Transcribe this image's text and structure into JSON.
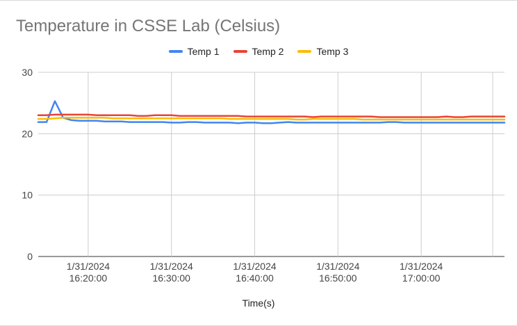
{
  "chart_data": {
    "type": "line",
    "title": "Temperature in CSSE Lab (Celsius)",
    "xlabel": "Time(s)",
    "ylabel": "",
    "ylim": [
      0,
      30
    ],
    "yticks": [
      "0",
      "10",
      "20",
      "30"
    ],
    "xlim": [
      "2024-01-31 16:14:00",
      "2024-01-31 17:10:00"
    ],
    "xticks": [
      {
        "t": "2024-01-31 16:20:00",
        "line1": "1/31/2024",
        "line2": "16:20:00"
      },
      {
        "t": "2024-01-31 16:30:00",
        "line1": "1/31/2024",
        "line2": "16:30:00"
      },
      {
        "t": "2024-01-31 16:40:00",
        "line1": "1/31/2024",
        "line2": "16:40:00"
      },
      {
        "t": "2024-01-31 16:50:00",
        "line1": "1/31/2024",
        "line2": "16:50:00"
      },
      {
        "t": "2024-01-31 17:00:00",
        "line1": "1/31/2024",
        "line2": "17:00:00"
      }
    ],
    "grid": true,
    "legend_position": "top",
    "x": [
      "16:14:00",
      "16:15:00",
      "16:16:00",
      "16:17:00",
      "16:18:00",
      "16:19:00",
      "16:20:00",
      "16:21:00",
      "16:22:00",
      "16:23:00",
      "16:24:00",
      "16:25:00",
      "16:26:00",
      "16:27:00",
      "16:28:00",
      "16:29:00",
      "16:30:00",
      "16:31:00",
      "16:32:00",
      "16:33:00",
      "16:34:00",
      "16:35:00",
      "16:36:00",
      "16:37:00",
      "16:38:00",
      "16:39:00",
      "16:40:00",
      "16:41:00",
      "16:42:00",
      "16:43:00",
      "16:44:00",
      "16:45:00",
      "16:46:00",
      "16:47:00",
      "16:48:00",
      "16:49:00",
      "16:50:00",
      "16:51:00",
      "16:52:00",
      "16:53:00",
      "16:54:00",
      "16:55:00",
      "16:56:00",
      "16:57:00",
      "16:58:00",
      "16:59:00",
      "17:00:00",
      "17:01:00",
      "17:02:00",
      "17:03:00",
      "17:04:00",
      "17:05:00",
      "17:06:00",
      "17:07:00",
      "17:08:00",
      "17:09:00",
      "17:10:00"
    ],
    "series": [
      {
        "name": "Temp 1",
        "color": "#4285f4",
        "values": [
          21.9,
          21.9,
          25.3,
          22.6,
          22.2,
          22.1,
          22.1,
          22.1,
          22.0,
          22.0,
          22.0,
          21.9,
          21.9,
          21.9,
          21.9,
          21.9,
          21.8,
          21.8,
          21.9,
          21.9,
          21.8,
          21.8,
          21.8,
          21.8,
          21.7,
          21.8,
          21.8,
          21.7,
          21.7,
          21.8,
          21.9,
          21.8,
          21.8,
          21.8,
          21.8,
          21.8,
          21.8,
          21.8,
          21.8,
          21.8,
          21.8,
          21.8,
          21.9,
          21.9,
          21.8,
          21.8,
          21.8,
          21.8,
          21.8,
          21.8,
          21.8,
          21.8,
          21.8,
          21.8,
          21.8,
          21.8,
          21.8
        ]
      },
      {
        "name": "Temp 2",
        "color": "#ea4335",
        "values": [
          23.0,
          23.0,
          23.1,
          23.1,
          23.1,
          23.1,
          23.1,
          23.0,
          23.0,
          23.0,
          23.0,
          23.0,
          22.9,
          22.9,
          23.0,
          23.0,
          23.0,
          22.9,
          22.9,
          22.9,
          22.9,
          22.9,
          22.9,
          22.9,
          22.9,
          22.8,
          22.8,
          22.8,
          22.8,
          22.8,
          22.8,
          22.8,
          22.8,
          22.7,
          22.8,
          22.8,
          22.8,
          22.8,
          22.8,
          22.8,
          22.8,
          22.7,
          22.7,
          22.7,
          22.7,
          22.7,
          22.7,
          22.7,
          22.7,
          22.8,
          22.7,
          22.7,
          22.8,
          22.8,
          22.8,
          22.8,
          22.8
        ]
      },
      {
        "name": "Temp 3",
        "color": "#fbbc04",
        "values": [
          22.4,
          22.4,
          22.5,
          22.6,
          22.6,
          22.6,
          22.6,
          22.6,
          22.6,
          22.5,
          22.5,
          22.5,
          22.5,
          22.5,
          22.5,
          22.5,
          22.5,
          22.5,
          22.5,
          22.5,
          22.5,
          22.5,
          22.5,
          22.4,
          22.4,
          22.4,
          22.4,
          22.4,
          22.4,
          22.4,
          22.4,
          22.3,
          22.3,
          22.4,
          22.4,
          22.4,
          22.4,
          22.4,
          22.4,
          22.3,
          22.3,
          22.3,
          22.3,
          22.3,
          22.3,
          22.3,
          22.3,
          22.3,
          22.3,
          22.3,
          22.3,
          22.3,
          22.3,
          22.3,
          22.3,
          22.3,
          22.3
        ]
      }
    ]
  }
}
